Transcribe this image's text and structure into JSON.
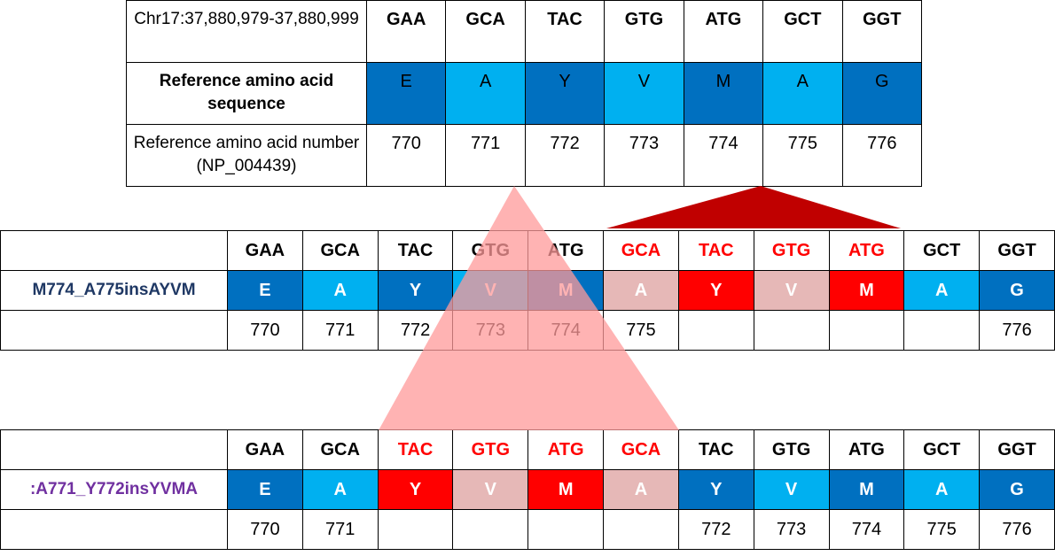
{
  "reference": {
    "position_label": "Chr17:37,880,979-37,880,999",
    "codons": [
      "GAA",
      "GCA",
      "TAC",
      "GTG",
      "ATG",
      "GCT",
      "GGT"
    ],
    "aa_label": "Reference amino acid sequence",
    "amino_acids": [
      "E",
      "A",
      "Y",
      "V",
      "M",
      "A",
      "G"
    ],
    "aa_colors": [
      "#0070c0",
      "#00b0f0",
      "#0070c0",
      "#00b0f0",
      "#0070c0",
      "#00b0f0",
      "#0070c0"
    ],
    "num_label": "Reference amino acid number (NP_004439)",
    "numbers": [
      "770",
      "771",
      "772",
      "773",
      "774",
      "775",
      "776"
    ]
  },
  "mutation1": {
    "name": "M774_A775insAYVM",
    "name_color": "#1f3864",
    "codons": [
      "GAA",
      "GCA",
      "TAC",
      "GTG",
      "ATG",
      "GCA",
      "TAC",
      "GTG",
      "ATG",
      "GCT",
      "GGT"
    ],
    "codon_red": [
      false,
      false,
      false,
      false,
      false,
      true,
      true,
      true,
      true,
      false,
      false
    ],
    "amino_acids": [
      "E",
      "A",
      "Y",
      "V",
      "M",
      "A",
      "Y",
      "V",
      "M",
      "A",
      "G"
    ],
    "aa_colors": [
      "#0070c0",
      "#00b0f0",
      "#0070c0",
      "#00b0f0",
      "#0070c0",
      "#e6b8b7",
      "#ff0000",
      "#e6b8b7",
      "#ff0000",
      "#00b0f0",
      "#0070c0"
    ],
    "numbers": [
      "770",
      "771",
      "772",
      "773",
      "774",
      "775",
      "",
      "",
      "",
      "",
      "776"
    ]
  },
  "mutation2": {
    "name": ":A771_Y772insYVMA",
    "name_color": "#7030a0",
    "codons": [
      "GAA",
      "GCA",
      "TAC",
      "GTG",
      "ATG",
      "GCA",
      "TAC",
      "GTG",
      "ATG",
      "GCT",
      "GGT"
    ],
    "codon_red": [
      false,
      false,
      true,
      true,
      true,
      true,
      false,
      false,
      false,
      false,
      false
    ],
    "amino_acids": [
      "E",
      "A",
      "Y",
      "V",
      "M",
      "A",
      "Y",
      "V",
      "M",
      "A",
      "G"
    ],
    "aa_colors": [
      "#0070c0",
      "#00b0f0",
      "#ff0000",
      "#e6b8b7",
      "#ff0000",
      "#e6b8b7",
      "#0070c0",
      "#00b0f0",
      "#0070c0",
      "#00b0f0",
      "#0070c0"
    ],
    "numbers": [
      "770",
      "771",
      "",
      "",
      "",
      "",
      "772",
      "773",
      "774",
      "775",
      "776"
    ]
  },
  "overlay": {
    "insertion_wedge_color": "#c00000",
    "insertion_triangle_color": "#ff9999"
  }
}
